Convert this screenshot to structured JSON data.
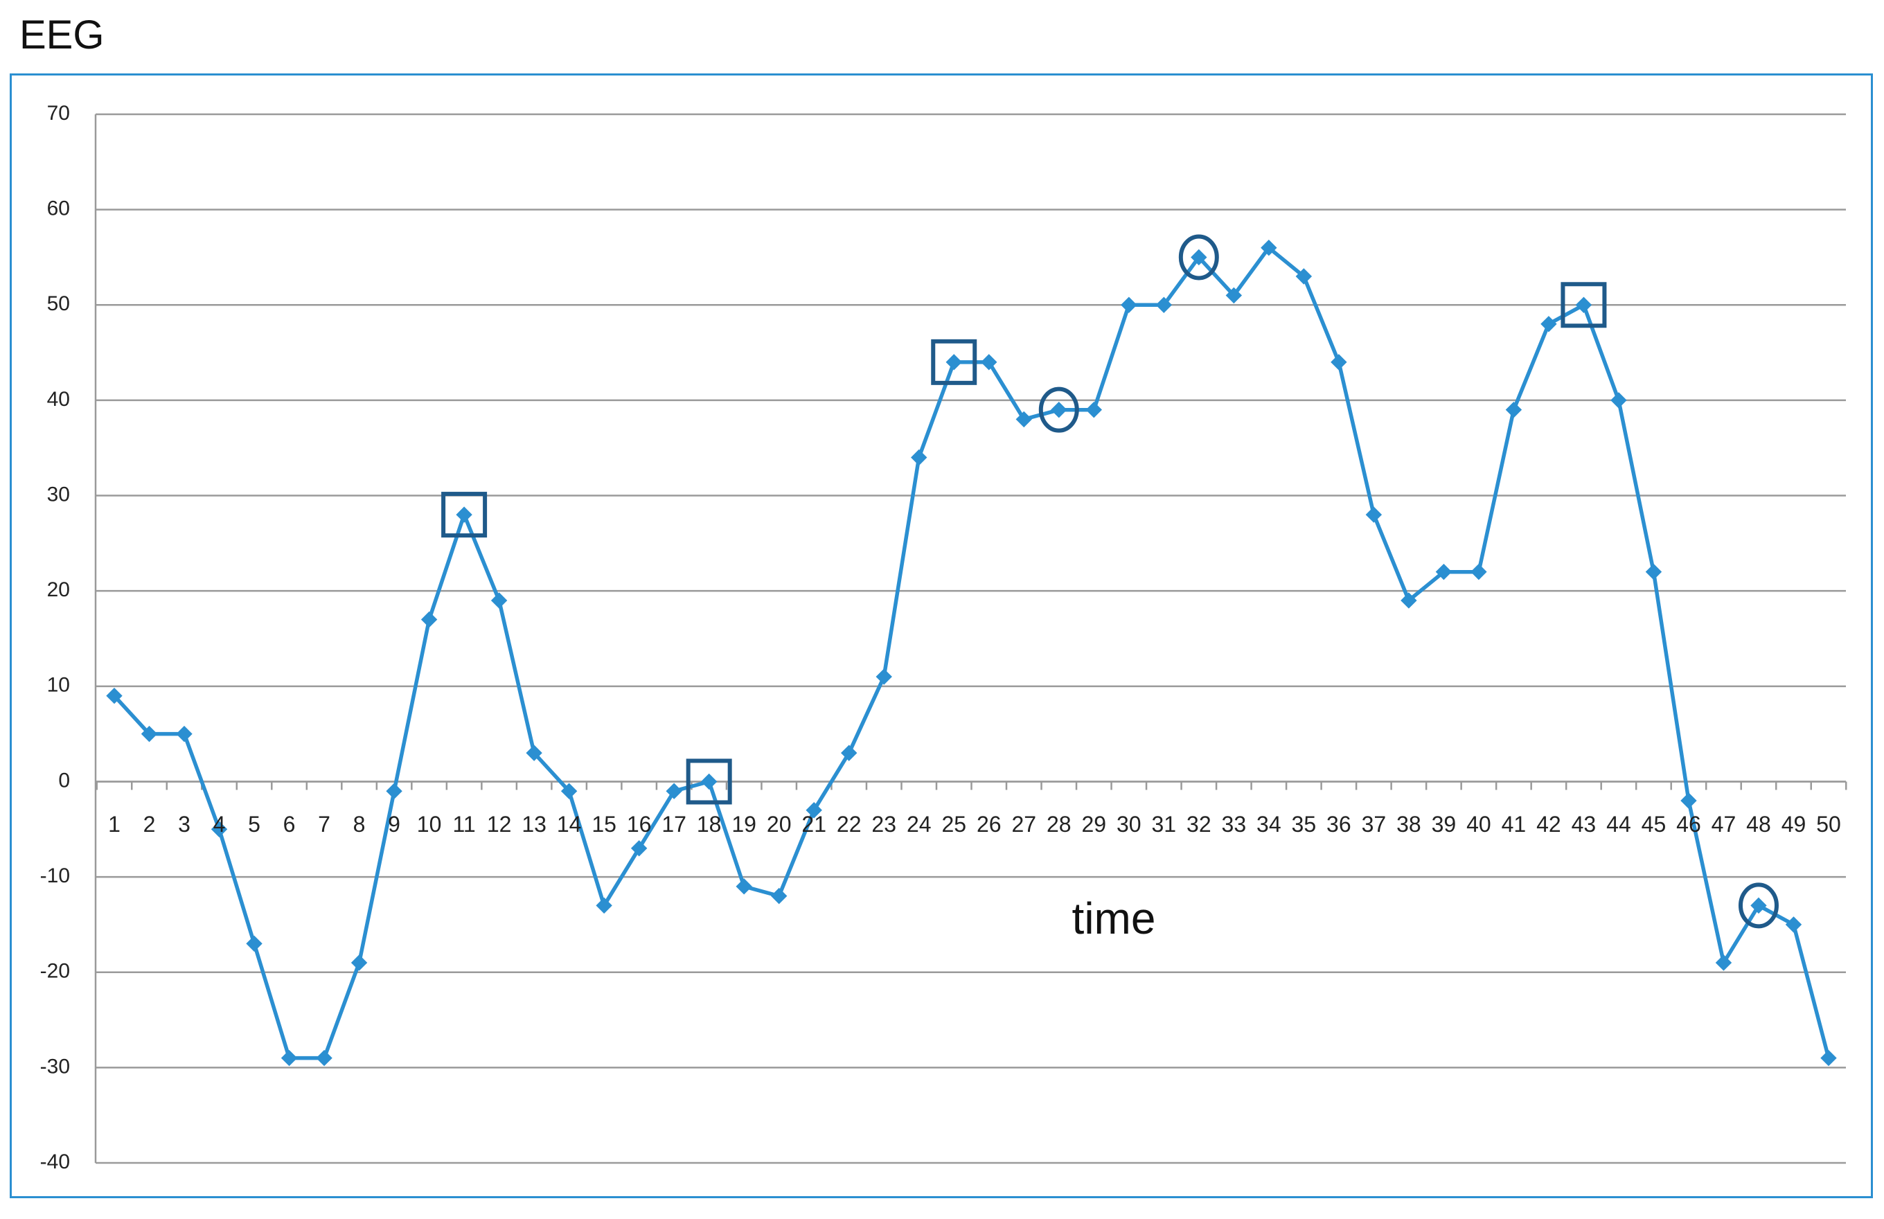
{
  "page": {
    "title": "EEG"
  },
  "chart_data": {
    "type": "line",
    "title": "",
    "xlabel": "time",
    "ylabel": "",
    "ylim": [
      -40,
      70
    ],
    "yticks": [
      -40,
      -30,
      -20,
      -10,
      0,
      10,
      20,
      30,
      40,
      50,
      60,
      70
    ],
    "categories": [
      "1",
      "2",
      "3",
      "4",
      "5",
      "6",
      "7",
      "8",
      "9",
      "10",
      "11",
      "12",
      "13",
      "14",
      "15",
      "16",
      "17",
      "18",
      "19",
      "20",
      "21",
      "22",
      "23",
      "24",
      "25",
      "26",
      "27",
      "28",
      "29",
      "30",
      "31",
      "32",
      "33",
      "34",
      "35",
      "36",
      "37",
      "38",
      "39",
      "40",
      "41",
      "42",
      "43",
      "44",
      "45",
      "46",
      "47",
      "48",
      "49",
      "50"
    ],
    "series": [
      {
        "values": [
          9,
          5,
          5,
          -5,
          -17,
          -29,
          -29,
          -19,
          -1,
          17,
          28,
          19,
          3,
          -1,
          -13,
          -7,
          -1,
          0,
          -11,
          -12,
          -3,
          3,
          11,
          34,
          44,
          44,
          38,
          39,
          39,
          50,
          50,
          55,
          51,
          56,
          53,
          44,
          28,
          19,
          22,
          22,
          39,
          48,
          50,
          40,
          22,
          -2,
          -19,
          -13,
          -15,
          -29
        ],
        "color": "#2b8fd1",
        "marker": "diamond"
      }
    ],
    "grid": true,
    "x_axis_crosses_at": 0,
    "annotations": {
      "square_markers_at": [
        11,
        18,
        25,
        43
      ],
      "circle_markers_at": [
        28,
        32,
        48
      ],
      "color": "#1f5a8a"
    }
  }
}
